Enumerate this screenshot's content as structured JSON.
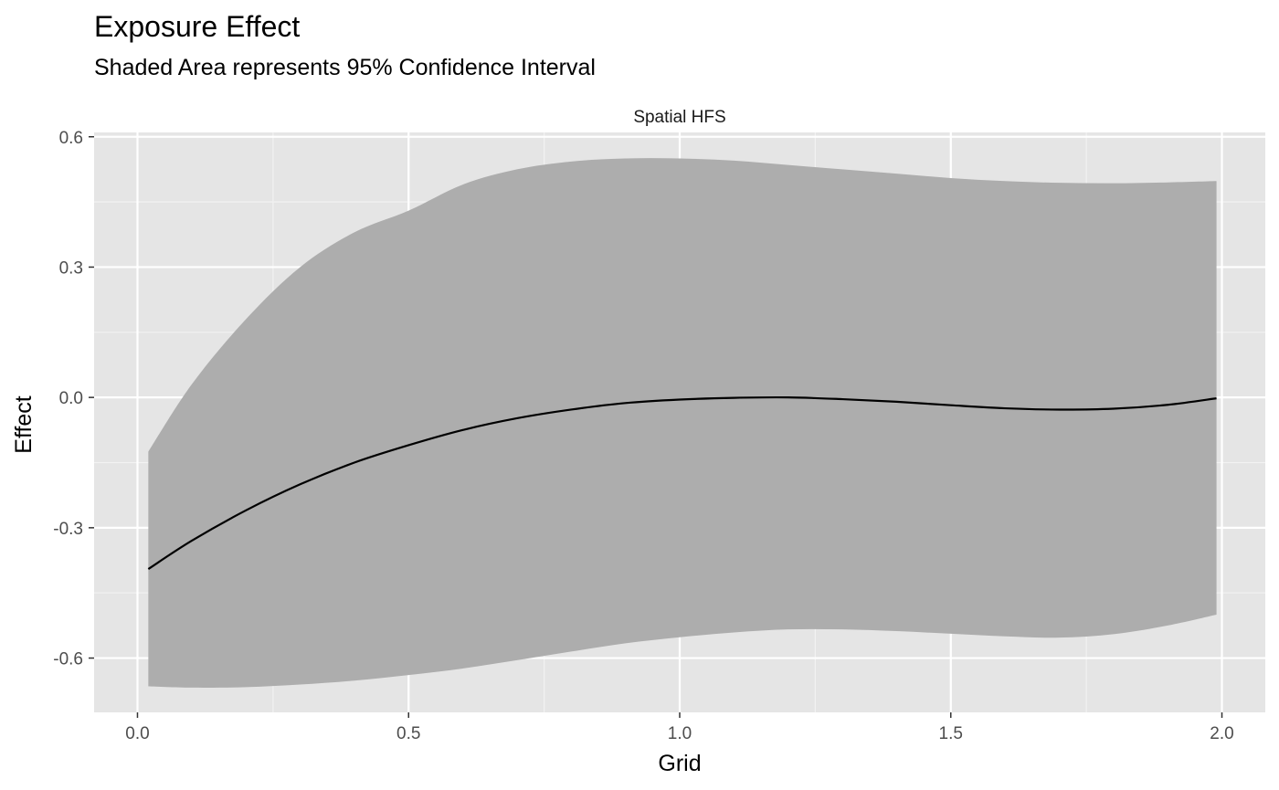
{
  "chart_data": {
    "type": "line",
    "title": "Exposure Effect",
    "subtitle": "Shaded Area represents 95% Confidence Interval",
    "facet_label": "Spatial HFS",
    "xlabel": "Grid",
    "ylabel": "Effect",
    "xlim": [
      -0.08,
      2.08
    ],
    "ylim": [
      -0.725,
      0.61
    ],
    "x_ticks": [
      0.0,
      0.5,
      1.0,
      1.5,
      2.0
    ],
    "x_tick_labels": [
      "0.0",
      "0.5",
      "1.0",
      "1.5",
      "2.0"
    ],
    "y_ticks": [
      0.6,
      0.3,
      0.0,
      -0.3,
      -0.6
    ],
    "y_tick_labels": [
      "0.6",
      "0.3",
      "0.0",
      "-0.3",
      "-0.6"
    ],
    "grid": true,
    "legend": "none",
    "x": [
      0.02,
      0.1,
      0.2,
      0.3,
      0.4,
      0.5,
      0.6,
      0.7,
      0.8,
      0.9,
      1.0,
      1.1,
      1.2,
      1.3,
      1.4,
      1.5,
      1.6,
      1.7,
      1.8,
      1.9,
      1.99
    ],
    "series": [
      {
        "values": [
          -0.395,
          -0.33,
          -0.26,
          -0.2,
          -0.15,
          -0.11,
          -0.075,
          -0.048,
          -0.028,
          -0.013,
          -0.005,
          -0.001,
          0.0,
          -0.004,
          -0.01,
          -0.018,
          -0.025,
          -0.028,
          -0.026,
          -0.017,
          -0.002
        ],
        "lower": [
          -0.665,
          -0.668,
          -0.667,
          -0.661,
          -0.652,
          -0.639,
          -0.624,
          -0.605,
          -0.585,
          -0.566,
          -0.552,
          -0.541,
          -0.534,
          -0.534,
          -0.538,
          -0.544,
          -0.55,
          -0.553,
          -0.545,
          -0.525,
          -0.5
        ],
        "upper": [
          -0.125,
          0.03,
          0.18,
          0.3,
          0.38,
          0.43,
          0.49,
          0.525,
          0.543,
          0.55,
          0.55,
          0.545,
          0.535,
          0.525,
          0.515,
          0.505,
          0.498,
          0.494,
          0.493,
          0.495,
          0.498
        ]
      }
    ],
    "colors": {
      "panel": "#e5e5e5",
      "grid_major": "#ffffff",
      "band": "#adadad",
      "line": "#000000",
      "strip": "#ffffff"
    }
  }
}
